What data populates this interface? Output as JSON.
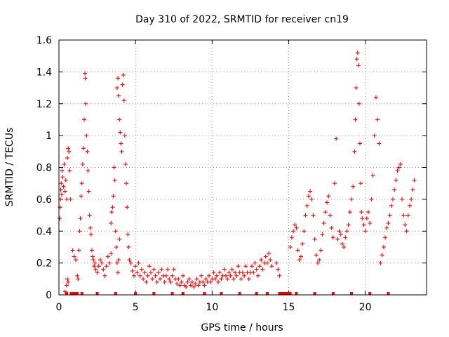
{
  "chart_data": {
    "type": "scatter",
    "title": "Day 310 of 2022, SRMTID for receiver cn19",
    "xlabel": "GPS time / hours",
    "ylabel": "SRMTID / TECUs",
    "xlim": [
      0,
      24
    ],
    "ylim": [
      0,
      1.6
    ],
    "xticks": [
      0,
      5,
      10,
      15,
      20
    ],
    "xtick_labels": [
      "0",
      "5",
      "10",
      "15",
      "20"
    ],
    "yticks": [
      0,
      0.2,
      0.4,
      0.6,
      0.8,
      1,
      1.2,
      1.4,
      1.6
    ],
    "ytick_labels": [
      "0",
      "0.2",
      "0.4",
      "0.6",
      "0.8",
      "1",
      "1.2",
      "1.4",
      "1.6"
    ],
    "grid": true,
    "marker": "+",
    "color": "#ff0000",
    "baseline_markers_x": [
      0.5,
      0.8,
      0.9,
      1.0,
      1.1,
      1.2,
      1.5,
      2.5,
      3.7,
      5.0,
      6.2,
      7.4,
      8.1,
      9.5,
      10.6,
      11.8,
      12.9,
      13.6,
      14.4,
      14.5,
      14.6,
      14.7,
      14.8,
      14.9,
      15.0,
      15.1,
      15.5,
      16.7,
      17.9,
      19.1,
      20.3,
      21.5
    ],
    "series": [
      {
        "name": "cn19",
        "points": [
          [
            0.05,
            0.48
          ],
          [
            0.08,
            0.55
          ],
          [
            0.1,
            0.6
          ],
          [
            0.12,
            0.66
          ],
          [
            0.15,
            0.7
          ],
          [
            0.18,
            0.63
          ],
          [
            0.2,
            0.78
          ],
          [
            0.25,
            0.74
          ],
          [
            0.3,
            0.68
          ],
          [
            0.35,
            0.82
          ],
          [
            0.4,
            0.65
          ],
          [
            0.45,
            0.72
          ],
          [
            0.5,
            0.6
          ],
          [
            0.55,
            0.86
          ],
          [
            0.6,
            0.92
          ],
          [
            0.65,
            0.9
          ],
          [
            0.7,
            0.78
          ],
          [
            0.75,
            0.6
          ],
          [
            0.4,
            0.02
          ],
          [
            0.5,
            0.06
          ],
          [
            0.55,
            0.1
          ],
          [
            0.6,
            0.08
          ],
          [
            0.9,
            0.28
          ],
          [
            1.0,
            0.24
          ],
          [
            1.1,
            0.22
          ],
          [
            1.2,
            0.12
          ],
          [
            1.25,
            0.1
          ],
          [
            1.3,
            0.28
          ],
          [
            1.35,
            0.4
          ],
          [
            1.4,
            0.48
          ],
          [
            1.45,
            0.62
          ],
          [
            1.5,
            0.7
          ],
          [
            1.55,
            0.82
          ],
          [
            1.6,
            0.92
          ],
          [
            1.65,
            1.1
          ],
          [
            1.7,
            1.39
          ],
          [
            1.72,
            1.36
          ],
          [
            1.75,
            1.2
          ],
          [
            1.8,
            1.0
          ],
          [
            1.85,
            0.9
          ],
          [
            1.9,
            0.78
          ],
          [
            1.95,
            0.65
          ],
          [
            2.0,
            0.5
          ],
          [
            2.05,
            0.42
          ],
          [
            2.1,
            0.38
          ],
          [
            2.15,
            0.28
          ],
          [
            2.2,
            0.24
          ],
          [
            2.25,
            0.22
          ],
          [
            2.3,
            0.18
          ],
          [
            2.35,
            0.2
          ],
          [
            2.4,
            0.16
          ],
          [
            2.5,
            0.14
          ],
          [
            2.6,
            0.18
          ],
          [
            2.7,
            0.22
          ],
          [
            2.8,
            0.2
          ],
          [
            2.9,
            0.16
          ],
          [
            3.0,
            0.12
          ],
          [
            3.1,
            0.18
          ],
          [
            3.2,
            0.24
          ],
          [
            3.3,
            0.2
          ],
          [
            3.4,
            0.26
          ],
          [
            3.4,
            0.45
          ],
          [
            3.45,
            0.52
          ],
          [
            3.5,
            0.55
          ],
          [
            3.55,
            0.62
          ],
          [
            3.6,
            0.8
          ],
          [
            3.65,
            0.72
          ],
          [
            3.7,
            0.4
          ],
          [
            3.75,
            0.3
          ],
          [
            3.8,
            0.2
          ],
          [
            3.85,
            0.14
          ],
          [
            3.9,
            0.22
          ],
          [
            3.95,
            0.35
          ],
          [
            3.8,
            1.3
          ],
          [
            3.85,
            1.36
          ],
          [
            3.9,
            1.25
          ],
          [
            3.95,
            1.1
          ],
          [
            4.0,
            1.02
          ],
          [
            4.05,
            0.95
          ],
          [
            4.1,
            0.9
          ],
          [
            4.15,
            1.32
          ],
          [
            4.2,
            1.38
          ],
          [
            4.25,
            1.22
          ],
          [
            4.3,
            1.0
          ],
          [
            4.35,
            0.82
          ],
          [
            4.4,
            0.7
          ],
          [
            4.45,
            0.55
          ],
          [
            4.5,
            0.38
          ],
          [
            4.55,
            0.3
          ],
          [
            4.6,
            0.22
          ],
          [
            4.7,
            0.2
          ],
          [
            4.8,
            0.15
          ],
          [
            4.9,
            0.12
          ],
          [
            5.0,
            0.18
          ],
          [
            5.1,
            0.14
          ],
          [
            5.2,
            0.2
          ],
          [
            5.3,
            0.12
          ],
          [
            5.4,
            0.16
          ],
          [
            5.5,
            0.1
          ],
          [
            5.6,
            0.14
          ],
          [
            5.7,
            0.08
          ],
          [
            5.8,
            0.12
          ],
          [
            5.9,
            0.18
          ],
          [
            6.0,
            0.14
          ],
          [
            6.1,
            0.1
          ],
          [
            6.2,
            0.16
          ],
          [
            6.3,
            0.12
          ],
          [
            6.4,
            0.08
          ],
          [
            6.5,
            0.14
          ],
          [
            6.6,
            0.1
          ],
          [
            6.7,
            0.16
          ],
          [
            6.8,
            0.12
          ],
          [
            6.9,
            0.08
          ],
          [
            7.0,
            0.12
          ],
          [
            7.1,
            0.16
          ],
          [
            7.2,
            0.1
          ],
          [
            7.3,
            0.08
          ],
          [
            7.4,
            0.12
          ],
          [
            7.5,
            0.16
          ],
          [
            7.6,
            0.1
          ],
          [
            7.7,
            0.07
          ],
          [
            7.8,
            0.1
          ],
          [
            7.9,
            0.06
          ],
          [
            8.0,
            0.08
          ],
          [
            8.1,
            0.12
          ],
          [
            8.2,
            0.06
          ],
          [
            8.3,
            0.05
          ],
          [
            8.4,
            0.08
          ],
          [
            8.5,
            0.1
          ],
          [
            8.6,
            0.06
          ],
          [
            8.7,
            0.08
          ],
          [
            8.8,
            0.05
          ],
          [
            8.9,
            0.07
          ],
          [
            9.0,
            0.1
          ],
          [
            9.1,
            0.06
          ],
          [
            9.2,
            0.08
          ],
          [
            9.3,
            0.12
          ],
          [
            9.4,
            0.08
          ],
          [
            9.5,
            0.06
          ],
          [
            9.6,
            0.1
          ],
          [
            9.7,
            0.08
          ],
          [
            9.8,
            0.12
          ],
          [
            9.9,
            0.08
          ],
          [
            10.0,
            0.1
          ],
          [
            10.1,
            0.14
          ],
          [
            10.2,
            0.1
          ],
          [
            10.3,
            0.12
          ],
          [
            10.4,
            0.08
          ],
          [
            10.5,
            0.14
          ],
          [
            10.6,
            0.1
          ],
          [
            10.7,
            0.12
          ],
          [
            10.8,
            0.16
          ],
          [
            10.9,
            0.12
          ],
          [
            11.0,
            0.1
          ],
          [
            11.1,
            0.14
          ],
          [
            11.2,
            0.12
          ],
          [
            11.3,
            0.16
          ],
          [
            11.4,
            0.1
          ],
          [
            11.5,
            0.14
          ],
          [
            11.6,
            0.12
          ],
          [
            11.7,
            0.18
          ],
          [
            11.8,
            0.14
          ],
          [
            11.9,
            0.1
          ],
          [
            12.0,
            0.14
          ],
          [
            12.1,
            0.12
          ],
          [
            12.2,
            0.18
          ],
          [
            12.3,
            0.14
          ],
          [
            12.4,
            0.1
          ],
          [
            12.5,
            0.14
          ],
          [
            12.6,
            0.18
          ],
          [
            12.7,
            0.14
          ],
          [
            12.8,
            0.2
          ],
          [
            12.9,
            0.16
          ],
          [
            13.0,
            0.12
          ],
          [
            13.1,
            0.18
          ],
          [
            13.2,
            0.22
          ],
          [
            13.3,
            0.16
          ],
          [
            13.4,
            0.2
          ],
          [
            13.5,
            0.24
          ],
          [
            13.6,
            0.2
          ],
          [
            13.7,
            0.26
          ],
          [
            13.8,
            0.22
          ],
          [
            13.9,
            0.18
          ],
          [
            14.2,
            0.2
          ],
          [
            14.3,
            0.16
          ],
          [
            14.4,
            0.12
          ],
          [
            15.1,
            0.3
          ],
          [
            15.2,
            0.36
          ],
          [
            15.3,
            0.4
          ],
          [
            15.4,
            0.44
          ],
          [
            15.5,
            0.42
          ],
          [
            15.6,
            0.28
          ],
          [
            15.7,
            0.22
          ],
          [
            15.8,
            0.24
          ],
          [
            15.9,
            0.32
          ],
          [
            16.0,
            0.4
          ],
          [
            16.1,
            0.5
          ],
          [
            16.2,
            0.56
          ],
          [
            16.3,
            0.62
          ],
          [
            16.4,
            0.65
          ],
          [
            16.5,
            0.6
          ],
          [
            16.6,
            0.5
          ],
          [
            16.7,
            0.35
          ],
          [
            16.8,
            0.25
          ],
          [
            16.9,
            0.2
          ],
          [
            17.0,
            0.22
          ],
          [
            17.1,
            0.28
          ],
          [
            17.2,
            0.38
          ],
          [
            17.3,
            0.45
          ],
          [
            17.4,
            0.52
          ],
          [
            17.5,
            0.58
          ],
          [
            17.6,
            0.62
          ],
          [
            17.7,
            0.5
          ],
          [
            17.8,
            0.42
          ],
          [
            17.9,
            0.36
          ],
          [
            18.0,
            0.7
          ],
          [
            18.1,
            0.98
          ],
          [
            18.2,
            0.35
          ],
          [
            18.3,
            0.4
          ],
          [
            18.4,
            0.38
          ],
          [
            18.5,
            0.32
          ],
          [
            18.6,
            0.3
          ],
          [
            18.7,
            0.36
          ],
          [
            18.8,
            0.4
          ],
          [
            18.9,
            0.44
          ],
          [
            19.0,
            0.52
          ],
          [
            19.1,
            0.6
          ],
          [
            19.2,
            0.68
          ],
          [
            19.3,
            0.9
          ],
          [
            19.35,
            1.1
          ],
          [
            19.4,
            1.3
          ],
          [
            19.45,
            1.48
          ],
          [
            19.5,
            1.52
          ],
          [
            19.55,
            1.44
          ],
          [
            19.6,
            1.2
          ],
          [
            19.65,
            0.95
          ],
          [
            19.7,
            0.7
          ],
          [
            19.75,
            0.52
          ],
          [
            19.8,
            0.48
          ],
          [
            19.9,
            0.44
          ],
          [
            20.0,
            0.4
          ],
          [
            20.1,
            0.48
          ],
          [
            20.2,
            0.52
          ],
          [
            20.3,
            0.45
          ],
          [
            20.4,
            0.6
          ],
          [
            20.5,
            0.75
          ],
          [
            20.6,
            1.0
          ],
          [
            20.7,
            1.24
          ],
          [
            20.8,
            1.1
          ],
          [
            20.9,
            0.95
          ],
          [
            21.0,
            0.2
          ],
          [
            21.1,
            0.25
          ],
          [
            21.2,
            0.3
          ],
          [
            21.3,
            0.36
          ],
          [
            21.4,
            0.42
          ],
          [
            21.5,
            0.45
          ],
          [
            21.6,
            0.5
          ],
          [
            21.7,
            0.56
          ],
          [
            21.8,
            0.6
          ],
          [
            21.9,
            0.66
          ],
          [
            22.0,
            0.72
          ],
          [
            22.1,
            0.78
          ],
          [
            22.2,
            0.8
          ],
          [
            22.3,
            0.82
          ],
          [
            22.4,
            0.6
          ],
          [
            22.5,
            0.5
          ],
          [
            22.6,
            0.44
          ],
          [
            22.7,
            0.4
          ],
          [
            22.8,
            0.5
          ],
          [
            22.9,
            0.56
          ],
          [
            23.0,
            0.6
          ],
          [
            23.1,
            0.66
          ],
          [
            23.2,
            0.72
          ]
        ]
      }
    ]
  }
}
